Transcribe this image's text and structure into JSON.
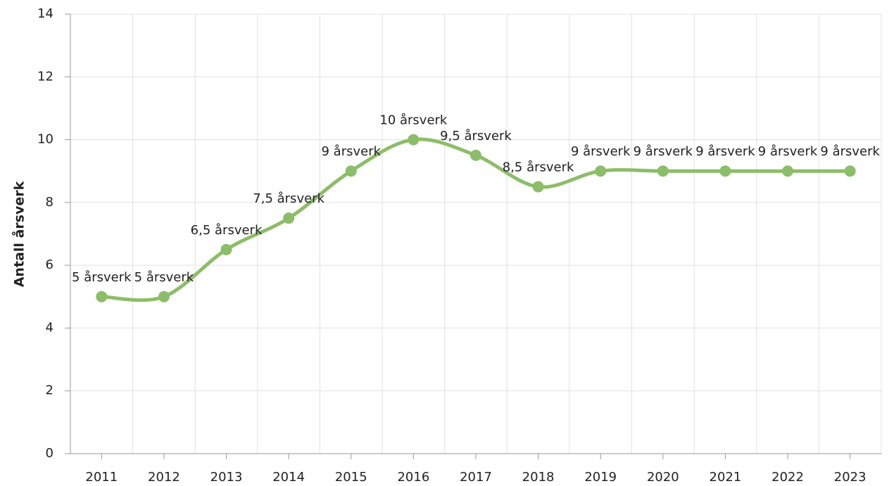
{
  "chart_data": {
    "type": "line",
    "ylabel": "Antall årsverk",
    "categories": [
      "2011",
      "2012",
      "2013",
      "2014",
      "2015",
      "2016",
      "2017",
      "2018",
      "2019",
      "2020",
      "2021",
      "2022",
      "2023"
    ],
    "series": [
      {
        "name": "Årsverk",
        "color": "#8cbd68",
        "values": [
          5,
          5,
          6.5,
          7.5,
          9,
          10,
          9.5,
          8.5,
          9,
          9,
          9,
          9,
          9
        ],
        "value_labels": [
          "5 årsverk",
          "5 årsverk",
          "6,5 årsverk",
          "7,5 årsverk",
          "9 årsverk",
          "10 årsverk",
          "9,5 årsverk",
          "8,5 årsverk",
          "9 årsverk",
          "9 årsverk",
          "9 årsverk",
          "9 årsverk",
          "9 årsverk"
        ]
      }
    ],
    "ylim": [
      0,
      14
    ],
    "yticks": [
      0,
      2,
      4,
      6,
      8,
      10,
      12,
      14
    ],
    "grid": true
  }
}
